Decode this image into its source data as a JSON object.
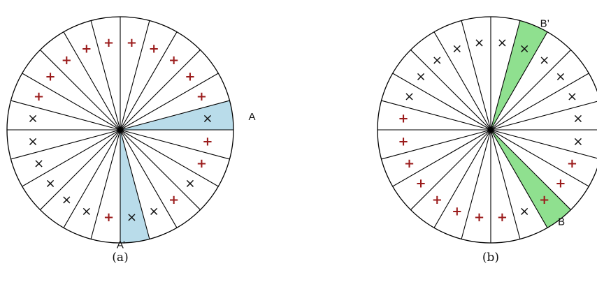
{
  "colors": {
    "plus": "#9b1b1b",
    "cross": "#111111",
    "highlight_a": "#b9dcea",
    "highlight_b": "#8fe08f",
    "line": "#000000"
  },
  "panels": [
    {
      "id": "a",
      "caption": "(a)",
      "sector_count": 24,
      "marks": [
        "cross",
        "plus",
        "plus",
        "plus",
        "plus",
        "plus",
        "plus",
        "plus",
        "plus",
        "plus",
        "plus",
        "cross",
        "cross",
        "cross",
        "cross",
        "cross",
        "cross",
        "plus",
        "cross",
        "cross",
        "plus",
        "cross",
        "plus",
        "plus"
      ],
      "highlights": [
        {
          "label": "A",
          "sector": 0,
          "color": "highlight_a"
        },
        {
          "label": "A’",
          "sector": 18,
          "color": "highlight_a"
        }
      ]
    },
    {
      "id": "b",
      "caption": "(b)",
      "sector_count": 24,
      "marks": [
        "cross",
        "cross",
        "cross",
        "cross",
        "cross",
        "cross",
        "cross",
        "cross",
        "cross",
        "cross",
        "cross",
        "plus",
        "plus",
        "plus",
        "plus",
        "plus",
        "plus",
        "plus",
        "plus",
        "cross",
        "plus",
        "plus",
        "plus",
        "cross"
      ],
      "highlights": [
        {
          "label": "B",
          "sector": 20,
          "color": "highlight_b"
        },
        {
          "label": "B’",
          "sector": 4,
          "color": "highlight_b"
        }
      ]
    }
  ],
  "glyphs": {
    "plus": "+",
    "cross": "×"
  }
}
